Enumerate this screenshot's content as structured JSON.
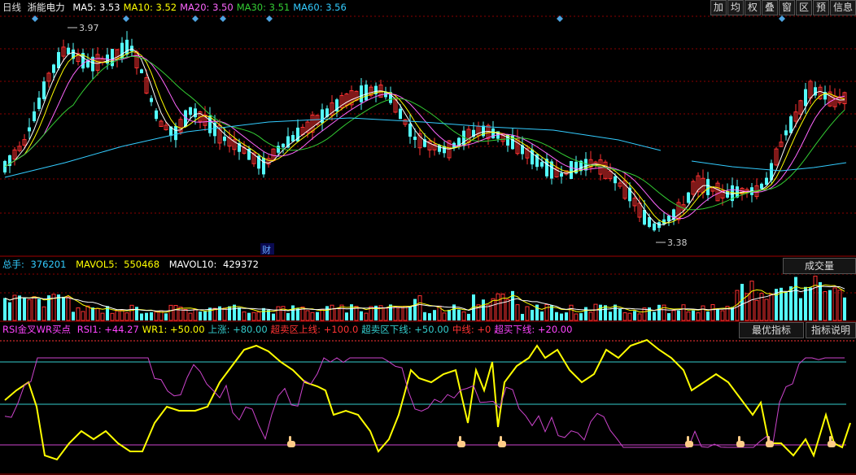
{
  "main_header": {
    "period": "日线",
    "stock_name": "浙能电力",
    "ma": [
      {
        "label": "MA5:",
        "value": "3.53",
        "color": "#ffffff"
      },
      {
        "label": "MA10:",
        "value": "3.52",
        "color": "#ffff00"
      },
      {
        "label": "MA20:",
        "value": "3.50",
        "color": "#ff66ff"
      },
      {
        "label": "MA30:",
        "value": "3.51",
        "color": "#33cc33"
      },
      {
        "label": "MA60:",
        "value": "3.56",
        "color": "#33ccff"
      }
    ]
  },
  "toolbar": {
    "buttons": [
      "加",
      "均",
      "权",
      "叠",
      "窗",
      "区",
      "预",
      "信息"
    ]
  },
  "price_annotations": {
    "high": "3.97",
    "low": "3.38",
    "event_badge": "财"
  },
  "volume_header": {
    "total_label": "总手:",
    "total_value": "376201",
    "mavol5_label": "MAVOL5:",
    "mavol5_value": "550468",
    "mavol10_label": "MAVOL10:",
    "mavol10_value": "429372",
    "indicator_button": "成交量"
  },
  "rsi_header": {
    "name": "RSI金叉WR买点",
    "items": [
      {
        "text": "RSI1: +44.27",
        "color": "#ff44ff"
      },
      {
        "text": "WR1: +50.00",
        "color": "#ffff00"
      },
      {
        "text": "上涨: +80.00",
        "color": "#33cccc"
      },
      {
        "text": "超卖区上线: +100.0",
        "color": "#ff3333"
      },
      {
        "text": "超卖区下线: +50.00",
        "color": "#33cccc"
      },
      {
        "text": "中线: +0",
        "color": "#ff3333"
      },
      {
        "text": "超买下线: +20.00",
        "color": "#ff44ff"
      }
    ],
    "btn_best": "最优指标",
    "btn_help": "指标说明"
  },
  "colors": {
    "up": "#ff3232",
    "down": "#54fcfc",
    "grid": "#8b0000",
    "ma5": "#ffffff",
    "ma10": "#ffff00",
    "ma20": "#ff66ff",
    "ma30": "#33cc33",
    "ma60": "#33ccff",
    "wr": "#ffff00",
    "rsi": "#cc44cc",
    "diamond": "#4fa3e0"
  },
  "icons": {
    "buy_signal": "hand-pointer-icon",
    "event_marker": "diamond-icon"
  }
}
